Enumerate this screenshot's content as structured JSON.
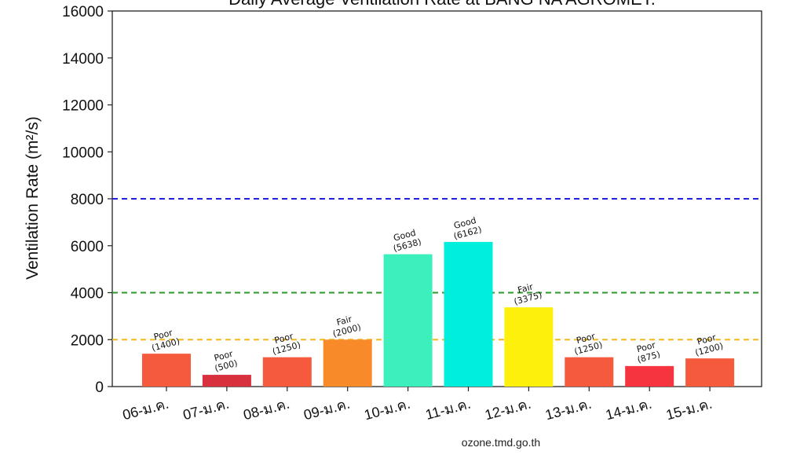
{
  "chart_data": {
    "type": "bar",
    "title": "Daily Average Ventilation Rate at BANG NA AGROMET.",
    "xlabel": "",
    "ylabel": "Ventilation Rate (m²/s)",
    "ylim": [
      0,
      16000
    ],
    "yticks": [
      0,
      2000,
      4000,
      6000,
      8000,
      10000,
      12000,
      14000,
      16000
    ],
    "categories": [
      "06-ม.ค.",
      "07-ม.ค.",
      "08-ม.ค.",
      "09-ม.ค.",
      "10-ม.ค.",
      "11-ม.ค.",
      "12-ม.ค.",
      "13-ม.ค.",
      "14-ม.ค.",
      "15-ม.ค."
    ],
    "values": [
      1400,
      500,
      1250,
      2000,
      5638,
      6162,
      3375,
      1250,
      875,
      1200
    ],
    "ratings": [
      "Poor",
      "Poor",
      "Poor",
      "Fair",
      "Good",
      "Good",
      "Fair",
      "Poor",
      "Poor",
      "Poor"
    ],
    "value_labels": [
      "(1400)",
      "(500)",
      "(1250)",
      "(2000)",
      "(5638)",
      "(6162)",
      "(3375)",
      "(1250)",
      "(875)",
      "(1200)"
    ],
    "bar_colors": [
      "#f65a3c",
      "#d8303c",
      "#f65a3c",
      "#f98a2a",
      "#3cf0bc",
      "#00eedc",
      "#fcf00c",
      "#f65a3c",
      "#f5343f",
      "#f65a3c"
    ],
    "reference_lines": [
      {
        "value": 2000,
        "color": "#f5b820"
      },
      {
        "value": 4000,
        "color": "#2a9a2a"
      },
      {
        "value": 8000,
        "color": "#2020e0"
      }
    ],
    "grid": false,
    "legend": "none"
  },
  "footer": {
    "source": "ozone.tmd.go.th"
  }
}
